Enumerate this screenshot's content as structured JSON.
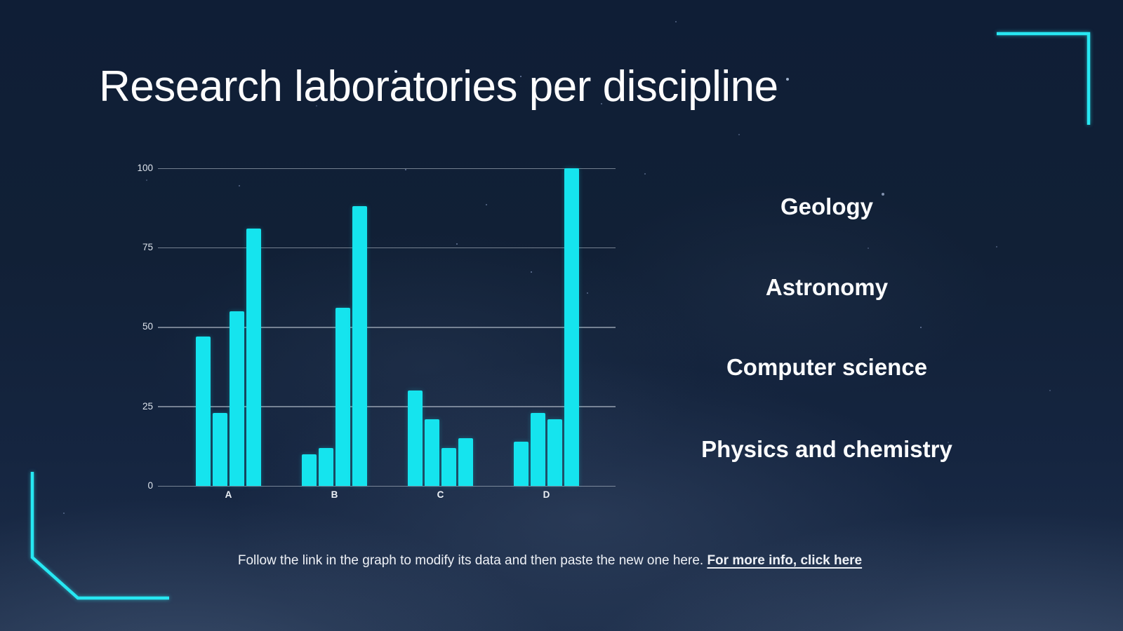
{
  "slide": {
    "title": "Research laboratories per discipline"
  },
  "chart_data": {
    "type": "bar",
    "title": "Research laboratories per discipline",
    "categories": [
      "A",
      "B",
      "C",
      "D"
    ],
    "series": [
      {
        "name": "Geology",
        "values": [
          47,
          10,
          30,
          14
        ]
      },
      {
        "name": "Astronomy",
        "values": [
          23,
          12,
          21,
          23
        ]
      },
      {
        "name": "Computer science",
        "values": [
          55,
          56,
          12,
          21
        ]
      },
      {
        "name": "Physics and chemistry",
        "values": [
          81,
          88,
          15,
          100
        ]
      }
    ],
    "ylim": [
      0,
      100
    ],
    "yticks": [
      0,
      25,
      50,
      75,
      100
    ],
    "grid": true,
    "legend_position": "right",
    "bar_color": "#15E4EE"
  },
  "footer": {
    "text": "Follow the link in the graph to modify its data and then paste the new one here. ",
    "link_text": "For more info, click here"
  },
  "colors": {
    "accent": "#15E4EE",
    "background": "#13223A",
    "gridline": "#C4CDD8",
    "text": "#FFFFFF"
  }
}
